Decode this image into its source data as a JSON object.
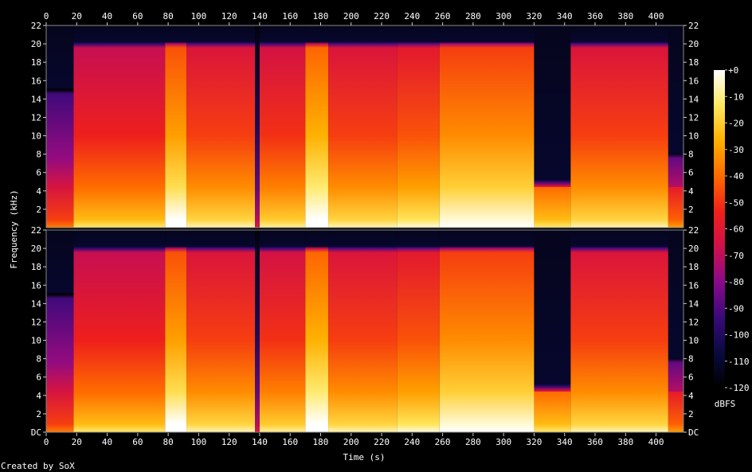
{
  "chart_data": {
    "type": "heatmap",
    "title": "",
    "xlabel": "Time (s)",
    "ylabel": "Frequency (kHz)",
    "x_ticks": [
      0,
      20,
      40,
      60,
      80,
      100,
      120,
      140,
      160,
      180,
      200,
      220,
      240,
      260,
      280,
      300,
      320,
      340,
      360,
      380,
      400
    ],
    "xlim": [
      0,
      418
    ],
    "y_ticks": [
      "DC",
      "2",
      "4",
      "6",
      "8",
      "10",
      "12",
      "14",
      "16",
      "18",
      "20",
      "22"
    ],
    "ylim_khz": [
      0,
      22
    ],
    "channels": 2,
    "colorbar": {
      "label": "dBFS",
      "ticks": [
        "+0",
        "-10",
        "-20",
        "-30",
        "-40",
        "-50",
        "-60",
        "-70",
        "-80",
        "-90",
        "-100",
        "-110",
        "-120"
      ],
      "range": [
        -120,
        0
      ]
    },
    "segments": [
      {
        "start": 0,
        "end": 18,
        "cutoff_khz": 15,
        "level": 0.35
      },
      {
        "start": 18,
        "end": 78,
        "cutoff_khz": 20,
        "level": 0.55
      },
      {
        "start": 78,
        "end": 92,
        "cutoff_khz": 20,
        "level": 0.75
      },
      {
        "start": 92,
        "end": 137,
        "cutoff_khz": 20,
        "level": 0.6
      },
      {
        "start": 137,
        "end": 140,
        "cutoff_khz": 22,
        "level": 0.15
      },
      {
        "start": 140,
        "end": 170,
        "cutoff_khz": 20,
        "level": 0.58
      },
      {
        "start": 170,
        "end": 185,
        "cutoff_khz": 20,
        "level": 0.78
      },
      {
        "start": 185,
        "end": 230,
        "cutoff_khz": 20,
        "level": 0.6
      },
      {
        "start": 230,
        "end": 258,
        "cutoff_khz": 20,
        "level": 0.63
      },
      {
        "start": 258,
        "end": 320,
        "cutoff_khz": 20,
        "level": 0.72
      },
      {
        "start": 320,
        "end": 344,
        "cutoff_khz": 5,
        "level": 0.55
      },
      {
        "start": 344,
        "end": 408,
        "cutoff_khz": 20,
        "level": 0.6
      },
      {
        "start": 408,
        "end": 418,
        "cutoff_khz": 8,
        "level": 0.4
      }
    ]
  },
  "footer": {
    "credit": "Created by SoX"
  },
  "palette": {
    "stops": [
      "#000000",
      "#0a0a40",
      "#3a0a7a",
      "#8a0a8a",
      "#d0104a",
      "#f0201a",
      "#ff6a00",
      "#ffb000",
      "#ffe860",
      "#ffffff"
    ]
  }
}
